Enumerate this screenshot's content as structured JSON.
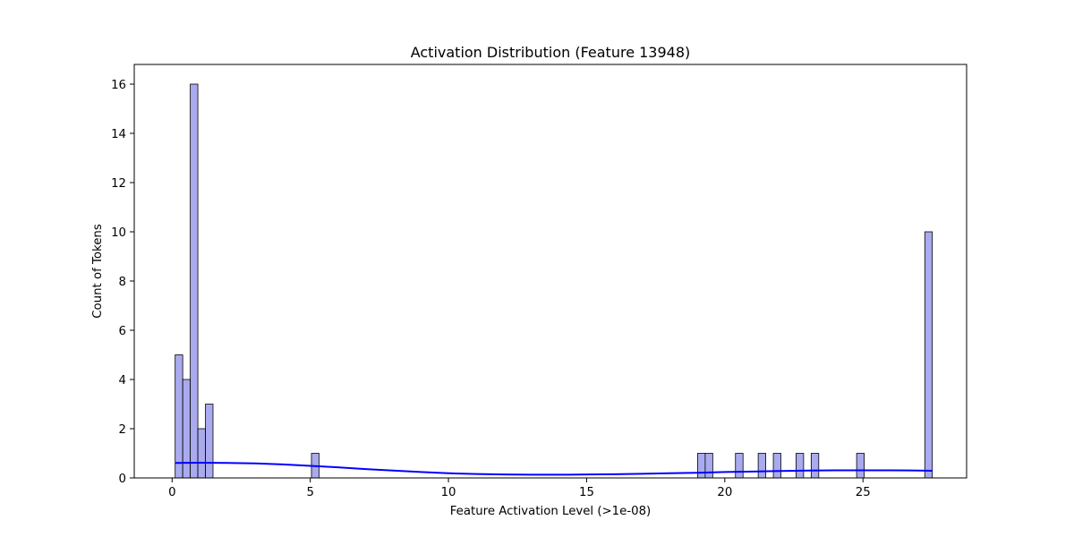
{
  "chart_data": {
    "type": "bar",
    "title": "Activation Distribution (Feature 13948)",
    "xlabel": "Feature Activation Level (>1e-08)",
    "ylabel": "Count of Tokens",
    "xlim": [
      -1.37,
      28.75
    ],
    "ylim": [
      0,
      16.8
    ],
    "xticks": [
      0,
      5,
      10,
      15,
      20,
      25
    ],
    "xtick_labels": [
      "0",
      "5",
      "10",
      "15",
      "20",
      "25"
    ],
    "yticks": [
      0,
      2,
      4,
      6,
      8,
      10,
      12,
      14,
      16
    ],
    "ytick_labels": [
      "0",
      "2",
      "4",
      "6",
      "8",
      "10",
      "12",
      "14",
      "16"
    ],
    "grid": false,
    "bins": {
      "bin_width": 0.274,
      "x_start": [
        0.11,
        0.384,
        0.658,
        0.932,
        1.206,
        5.042,
        19.016,
        19.29,
        20.386,
        21.208,
        21.756,
        22.578,
        23.126,
        24.77,
        27.236
      ],
      "counts": [
        5,
        4,
        16,
        2,
        3,
        1,
        1,
        1,
        1,
        1,
        1,
        1,
        1,
        1,
        10
      ]
    },
    "kde": {
      "x": [
        0.11,
        1,
        2,
        3,
        4,
        5,
        6,
        7,
        8,
        9,
        10,
        11,
        12,
        13,
        14,
        15,
        16,
        17,
        18,
        19,
        20,
        21,
        22,
        23,
        24,
        25,
        26,
        27,
        27.51
      ],
      "y": [
        0.61,
        0.62,
        0.61,
        0.59,
        0.55,
        0.49,
        0.43,
        0.36,
        0.3,
        0.24,
        0.19,
        0.16,
        0.14,
        0.13,
        0.13,
        0.14,
        0.15,
        0.17,
        0.19,
        0.21,
        0.24,
        0.26,
        0.28,
        0.3,
        0.31,
        0.31,
        0.31,
        0.3,
        0.29
      ]
    },
    "bar_fill": "#aaaaee",
    "bar_edge": "#000000",
    "kde_color": "#0000ff"
  }
}
